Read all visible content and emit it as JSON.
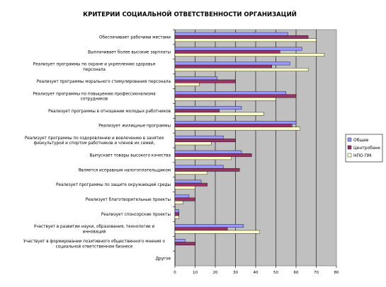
{
  "chart_data": {
    "type": "bar",
    "orientation": "horizontal",
    "title": "КРИТЕРИИ СОЦИАЛЬНОЙ ОТВЕТСТВЕННОСТИ ОРГАНИЗАЦИЙ",
    "xlim": [
      0,
      80
    ],
    "x_ticks": [
      "0",
      "10",
      "20",
      "30",
      "40",
      "50",
      "60",
      "70",
      "80"
    ],
    "grid": true,
    "legend_position": "right",
    "categories": [
      [
        "Обеспечивает рабочими местами"
      ],
      [
        "Выплачивает более высокие зарплаты"
      ],
      [
        "Реализует программы по охране и укреплению здоровья",
        "персонала"
      ],
      [
        "Реализует программы морального стимулирования персонала"
      ],
      [
        "Реализует программы по повышению профессионализма",
        "сотрудников"
      ],
      [
        "Реализует программы в отношении молодых работников"
      ],
      [
        "Реализует жилищные программы"
      ],
      [
        "Реализует программы по оздоровлению и вовлечению в занятия",
        "физкультурой и спортом работников и членов их семей,"
      ],
      [
        "Выпускает товары высокого качества"
      ],
      [
        "Является исправным налогоплательщиком"
      ],
      [
        "Реализует программы по защите окружающей среды"
      ],
      [
        "Реализует благотворительные проекты"
      ],
      [
        "Реализует спонсорские проекты"
      ],
      [
        "Участвует в развитии науки, образования, технологии и",
        "инноваций"
      ],
      [
        "Участвует в формировании позитивного общественного мнения о",
        "социальной ответственном бизнесе"
      ],
      [
        "Другое"
      ]
    ],
    "series": [
      {
        "name": "Общее",
        "color": "#9999ff",
        "values": [
          56,
          63,
          57,
          21,
          55,
          33,
          60,
          24,
          33,
          24,
          13,
          7,
          2,
          34,
          5,
          0
        ]
      },
      {
        "name": "Центробанк",
        "color": "#993366",
        "values": [
          66,
          52,
          48,
          30,
          60,
          22,
          58,
          30,
          38,
          32,
          16,
          10,
          2,
          26,
          10,
          0
        ]
      },
      {
        "name": "НПО ПМ",
        "color": "#ffffcc",
        "values": [
          70,
          74,
          66,
          12,
          50,
          44,
          62,
          18,
          28,
          16,
          10,
          4,
          2,
          42,
          0,
          0
        ]
      }
    ]
  }
}
